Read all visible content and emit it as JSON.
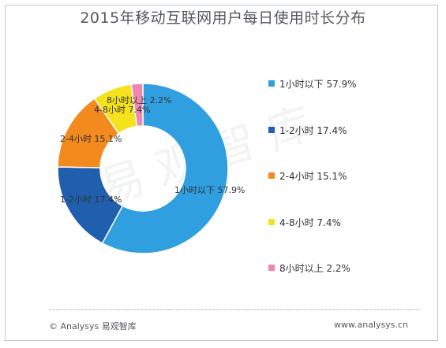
{
  "title": "2015年移动互联网用户每日使用时长分布",
  "watermark": "易观智库",
  "footer": {
    "copyright": "© Analysys 易观智库",
    "website": "www.analysys.cn"
  },
  "chart_data": {
    "type": "pie",
    "donut": true,
    "title": "2015年移动互联网用户每日使用时长分布",
    "legend_position": "right",
    "series": [
      {
        "name": "1小时以下",
        "value": 57.9,
        "label": "1小时以下 57.9%",
        "color": "#2f9fe0"
      },
      {
        "name": "1-2小时",
        "value": 17.4,
        "label": "1-2小时 17.4%",
        "color": "#1f5fae"
      },
      {
        "name": "2-4小时",
        "value": 15.1,
        "label": "2-4小时 15.1%",
        "color": "#f28a1e"
      },
      {
        "name": "4-8小时",
        "value": 7.4,
        "label": "4-8小时 7.4%",
        "color": "#f4e21c"
      },
      {
        "name": "8小时以上",
        "value": 2.2,
        "label": "8小时以上 2.2%",
        "color": "#ee86ad"
      }
    ]
  }
}
